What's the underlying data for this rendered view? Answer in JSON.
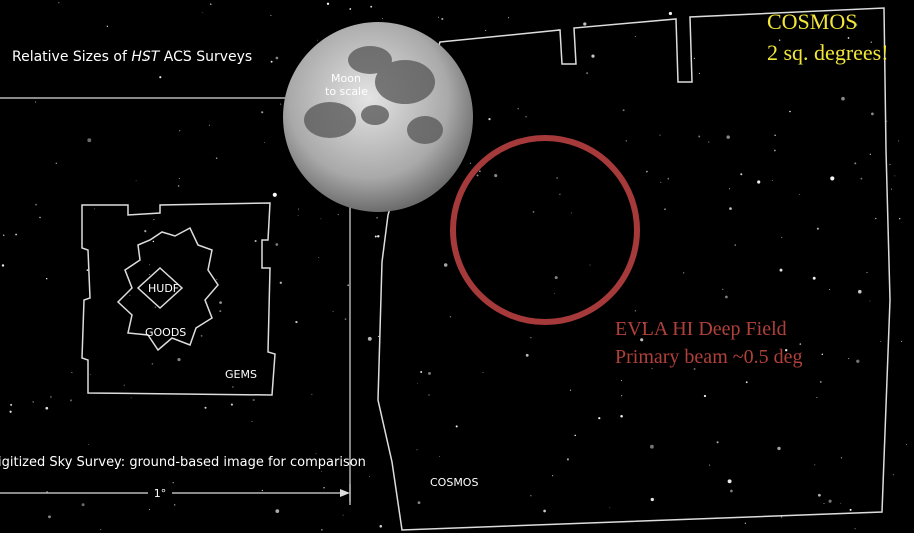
{
  "header": {
    "title_parts": [
      "Relative Sizes of ",
      "HST",
      " ACS Surveys"
    ]
  },
  "moon": {
    "label_lines": [
      "Moon",
      "to scale"
    ]
  },
  "cosmos_note": {
    "lines": [
      "COSMOS",
      "2 sq. degrees!"
    ]
  },
  "evla_note": {
    "lines": [
      "EVLA HI Deep Field",
      "Primary beam ~0.5 deg"
    ]
  },
  "survey_labels": {
    "hudf": "HUDF",
    "goods": "GOODS",
    "gems": "GEMS",
    "cosmos": "COSMOS"
  },
  "caption": "igitized Sky Survey: ground-based image for comparison",
  "scale_label": "1°"
}
